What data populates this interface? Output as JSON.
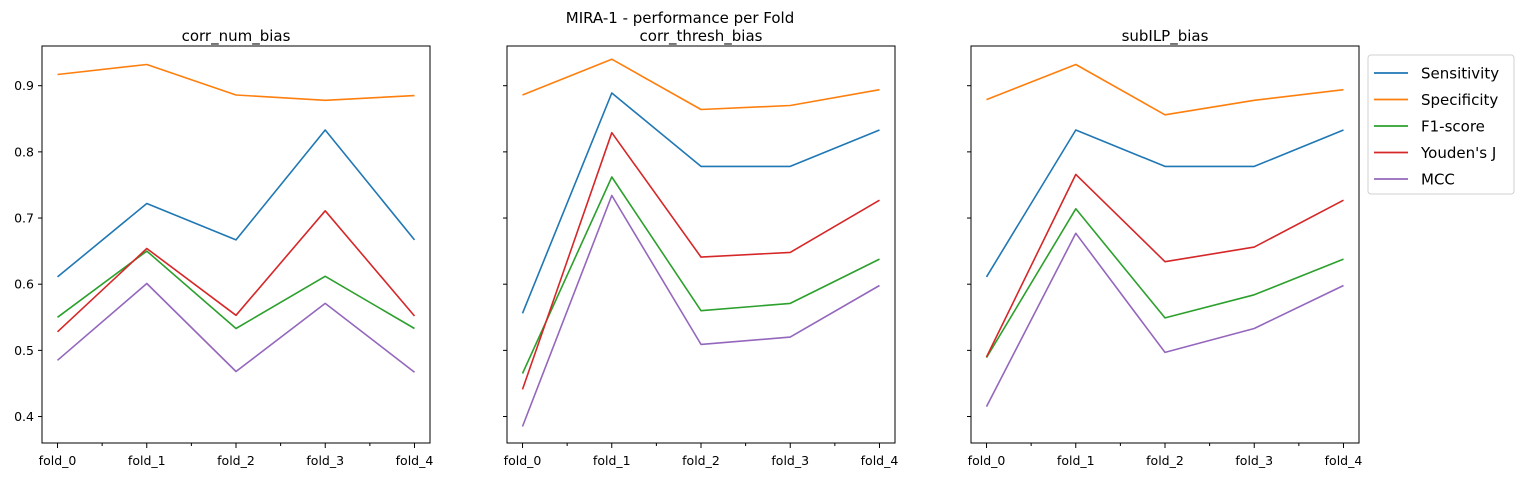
{
  "figure": {
    "suptitle": "MIRA-1 - performance per Fold"
  },
  "chart_data": [
    {
      "type": "line",
      "title": "corr_num_bias",
      "categories": [
        "fold_0",
        "fold_1",
        "fold_2",
        "fold_3",
        "fold_4"
      ],
      "ylim": [
        0.36,
        0.96
      ],
      "yticks": [
        0.4,
        0.5,
        0.6,
        0.7,
        0.8,
        0.9
      ],
      "ytick_labels": [
        "0.4",
        "0.5",
        "0.6",
        "0.7",
        "0.8",
        "0.9"
      ],
      "series": [
        {
          "name": "Sensitivity",
          "color": "#1f77b4",
          "values": [
            0.611,
            0.722,
            0.667,
            0.833,
            0.667
          ]
        },
        {
          "name": "Specificity",
          "color": "#ff7f0e",
          "values": [
            0.917,
            0.932,
            0.886,
            0.878,
            0.885
          ]
        },
        {
          "name": "F1-score",
          "color": "#2ca02c",
          "values": [
            0.55,
            0.65,
            0.533,
            0.612,
            0.533
          ]
        },
        {
          "name": "Youden's J",
          "color": "#d62728",
          "values": [
            0.528,
            0.654,
            0.553,
            0.711,
            0.552
          ]
        },
        {
          "name": "MCC",
          "color": "#9467bd",
          "values": [
            0.485,
            0.601,
            0.468,
            0.571,
            0.467
          ]
        }
      ]
    },
    {
      "type": "line",
      "title": "corr_thresh_bias",
      "categories": [
        "fold_0",
        "fold_1",
        "fold_2",
        "fold_3",
        "fold_4"
      ],
      "ylim": [
        0.36,
        0.96
      ],
      "series": [
        {
          "name": "Sensitivity",
          "color": "#1f77b4",
          "values": [
            0.556,
            0.889,
            0.778,
            0.778,
            0.833
          ]
        },
        {
          "name": "Specificity",
          "color": "#ff7f0e",
          "values": [
            0.886,
            0.94,
            0.864,
            0.87,
            0.894
          ]
        },
        {
          "name": "F1-score",
          "color": "#2ca02c",
          "values": [
            0.465,
            0.762,
            0.56,
            0.571,
            0.638
          ]
        },
        {
          "name": "Youden's J",
          "color": "#d62728",
          "values": [
            0.441,
            0.829,
            0.641,
            0.648,
            0.727
          ]
        },
        {
          "name": "MCC",
          "color": "#9467bd",
          "values": [
            0.385,
            0.734,
            0.509,
            0.52,
            0.598
          ]
        }
      ]
    },
    {
      "type": "line",
      "title": "subILP_bias",
      "categories": [
        "fold_0",
        "fold_1",
        "fold_2",
        "fold_3",
        "fold_4"
      ],
      "ylim": [
        0.36,
        0.96
      ],
      "legend_placement": "outside-right-top",
      "series": [
        {
          "name": "Sensitivity",
          "color": "#1f77b4",
          "values": [
            0.611,
            0.833,
            0.778,
            0.778,
            0.833
          ]
        },
        {
          "name": "Specificity",
          "color": "#ff7f0e",
          "values": [
            0.879,
            0.932,
            0.856,
            0.878,
            0.894
          ]
        },
        {
          "name": "F1-score",
          "color": "#2ca02c",
          "values": [
            0.489,
            0.714,
            0.549,
            0.584,
            0.638
          ]
        },
        {
          "name": "Youden's J",
          "color": "#d62728",
          "values": [
            0.49,
            0.766,
            0.634,
            0.656,
            0.727
          ]
        },
        {
          "name": "MCC",
          "color": "#9467bd",
          "values": [
            0.415,
            0.677,
            0.497,
            0.533,
            0.598
          ]
        }
      ]
    }
  ]
}
